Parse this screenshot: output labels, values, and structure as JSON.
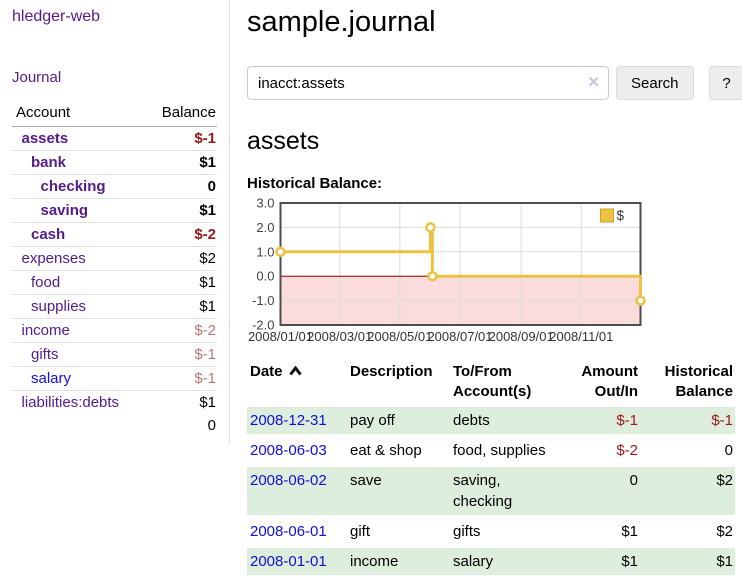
{
  "app": {
    "title": "hledger-web",
    "nav_journal": "Journal"
  },
  "sidebar": {
    "header": {
      "account": "Account",
      "balance": "Balance"
    },
    "accounts": [
      {
        "name": "assets",
        "indent": 1,
        "balance": "$-1",
        "bold": true,
        "neg": "strong"
      },
      {
        "name": "bank",
        "indent": 2,
        "balance": "$1",
        "bold": true
      },
      {
        "name": "checking",
        "indent": 3,
        "balance": "0",
        "bold": true
      },
      {
        "name": "saving",
        "indent": 3,
        "balance": "$1",
        "bold": true
      },
      {
        "name": "cash",
        "indent": 2,
        "balance": "$-2",
        "bold": true,
        "neg": "strong"
      },
      {
        "name": "expenses",
        "indent": 1,
        "balance": "$2"
      },
      {
        "name": "food",
        "indent": 2,
        "balance": "$1"
      },
      {
        "name": "supplies",
        "indent": 2,
        "balance": "$1"
      },
      {
        "name": "income",
        "indent": 1,
        "balance": "$-2",
        "neg": "muted"
      },
      {
        "name": "gifts",
        "indent": 2,
        "balance": "$-1",
        "neg": "muted"
      },
      {
        "name": "salary",
        "indent": 2,
        "balance": "$-1",
        "neg": "muted",
        "unvisited": true
      },
      {
        "name": "liabilities:debts",
        "indent": 1,
        "balance": "$1"
      }
    ],
    "total": "0"
  },
  "header": {
    "title": "sample.journal"
  },
  "search": {
    "value": "inacct:assets",
    "clear_icon": "✕",
    "button": "Search",
    "help_button": "?"
  },
  "account_page": {
    "heading": "assets",
    "chart_label": "Historical Balance:"
  },
  "chart_data": {
    "type": "line",
    "step": true,
    "title": "Historical Balance",
    "series": [
      {
        "name": "$",
        "color": "#EDC240",
        "points": [
          [
            "2008-01-01",
            1
          ],
          [
            "2008-06-01",
            2
          ],
          [
            "2008-06-03",
            0
          ],
          [
            "2008-12-31",
            -1
          ]
        ]
      }
    ],
    "xrange": [
      "2008-01-01",
      "2008-12-31"
    ],
    "ylim": [
      -2,
      3
    ],
    "yticks": [
      {
        "v": 3,
        "label": "3.0"
      },
      {
        "v": 2,
        "label": "2.0"
      },
      {
        "v": 1,
        "label": "1.0"
      },
      {
        "v": 0,
        "label": "0.0"
      },
      {
        "v": -1,
        "label": "-1.0"
      },
      {
        "v": -2,
        "label": "-2.0"
      }
    ],
    "xticks": [
      {
        "date": "2008-01-01",
        "label": "2008/01/01"
      },
      {
        "date": "2008-03-01",
        "label": "2008/03/01"
      },
      {
        "date": "2008-05-01",
        "label": "2008/05/01"
      },
      {
        "date": "2008-07-01",
        "label": "2008/07/01"
      },
      {
        "date": "2008-09-01",
        "label": "2008/09/01"
      },
      {
        "date": "2008-11-01",
        "label": "2008/11/01"
      }
    ],
    "legend": {
      "label": "$",
      "position": "top-right"
    },
    "grid": true,
    "colors": {
      "line": "#EDC240",
      "negative_fill": "#fbdcdc",
      "zero_line": "#8b0000",
      "grid": "#dcdcdc",
      "border": "#4d4d4d"
    }
  },
  "register": {
    "columns": {
      "date": "Date",
      "description": "Description",
      "tofrom": "To/From Account(s)",
      "amount": "Amount Out/In",
      "balance": "Historical Balance"
    },
    "rows": [
      {
        "date": "2008-12-31",
        "description": "pay off",
        "accounts": "debts",
        "amount": "$-1",
        "balance": "$-1",
        "amount_negative": true,
        "balance_negative": true
      },
      {
        "date": "2008-06-03",
        "description": "eat & shop",
        "accounts": "food, supplies",
        "amount": "$-2",
        "balance": "0",
        "amount_negative": true,
        "balance_negative": false
      },
      {
        "date": "2008-06-02",
        "description": "save",
        "accounts": "saving, checking",
        "amount": "0",
        "balance": "$2",
        "amount_negative": false,
        "balance_negative": false
      },
      {
        "date": "2008-06-01",
        "description": "gift",
        "accounts": "gifts",
        "amount": "$1",
        "balance": "$2",
        "amount_negative": false,
        "balance_negative": false
      },
      {
        "date": "2008-01-01",
        "description": "income",
        "accounts": "salary",
        "amount": "$1",
        "balance": "$1",
        "amount_negative": false,
        "balance_negative": false
      }
    ]
  }
}
